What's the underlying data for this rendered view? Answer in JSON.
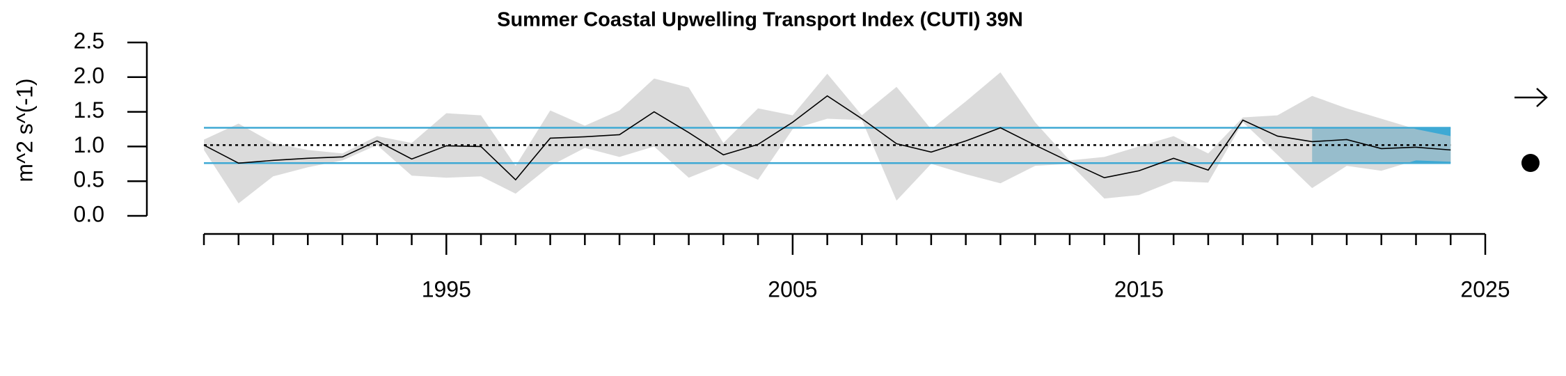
{
  "chart_data": {
    "type": "line",
    "title": "Summer Coastal Upwelling Transport Index (CUTI) 39N",
    "y_label": "m^2 s^(-1)",
    "x": [
      1988,
      1989,
      1990,
      1991,
      1992,
      1993,
      1994,
      1995,
      1996,
      1997,
      1998,
      1999,
      2000,
      2001,
      2002,
      2003,
      2004,
      2005,
      2006,
      2007,
      2008,
      2009,
      2010,
      2011,
      2012,
      2013,
      2014,
      2015,
      2016,
      2017,
      2018,
      2019,
      2020,
      2021,
      2022,
      2023,
      2024
    ],
    "values": [
      1.02,
      0.76,
      0.8,
      0.83,
      0.85,
      1.08,
      0.82,
      1.01,
      1.0,
      0.52,
      1.12,
      1.14,
      1.17,
      1.5,
      1.2,
      0.88,
      1.03,
      1.35,
      1.73,
      1.4,
      1.04,
      0.92,
      1.08,
      1.27,
      1.02,
      0.78,
      0.55,
      0.65,
      0.83,
      0.66,
      1.38,
      1.15,
      1.07,
      1.1,
      0.97,
      0.99,
      0.95
    ],
    "upper": [
      1.1,
      1.33,
      1.05,
      0.95,
      0.9,
      1.15,
      1.05,
      1.48,
      1.45,
      0.72,
      1.52,
      1.3,
      1.52,
      1.98,
      1.85,
      1.05,
      1.55,
      1.45,
      2.05,
      1.45,
      1.86,
      1.25,
      1.65,
      2.07,
      1.35,
      0.8,
      0.85,
      1.0,
      1.15,
      0.9,
      1.42,
      1.45,
      1.73,
      1.55,
      1.4,
      1.25,
      1.15
    ],
    "lower": [
      0.95,
      0.18,
      0.57,
      0.7,
      0.8,
      1.02,
      0.58,
      0.55,
      0.57,
      0.32,
      0.72,
      0.98,
      0.85,
      1.0,
      0.55,
      0.75,
      0.52,
      1.25,
      1.4,
      1.38,
      0.22,
      0.75,
      0.6,
      0.47,
      0.72,
      0.75,
      0.25,
      0.3,
      0.5,
      0.48,
      1.35,
      0.88,
      0.4,
      0.72,
      0.65,
      0.8,
      0.78
    ],
    "mean": 1.02,
    "sd_upper": 1.27,
    "sd_lower": 0.76,
    "highlight_x": [
      2020,
      2024
    ],
    "line_color": "#000000",
    "band_color": "#c8c8c8",
    "sd_color": "#3ea9d4",
    "xlim": [
      1988,
      2025
    ],
    "xticks": [
      1995,
      2005,
      2015,
      2025
    ],
    "ylim": [
      0,
      2.5
    ],
    "yticks": [
      {
        "value": 0,
        "label": "0.0"
      },
      0.5,
      {
        "value": 1,
        "label": "1.0"
      },
      1.5,
      {
        "value": 2,
        "label": "2.0"
      },
      2.5
    ]
  }
}
